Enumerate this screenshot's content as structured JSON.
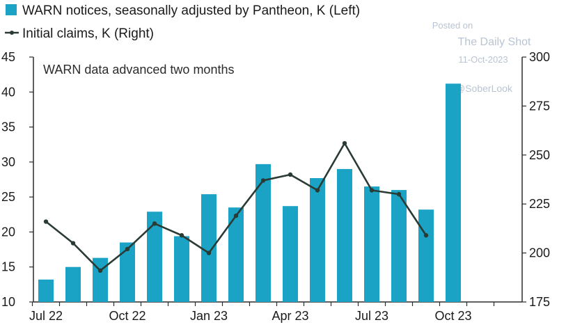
{
  "chart_data": {
    "type": "bar+line",
    "legend": {
      "bars_label": "WARN notices, seasonally adjusted by Pantheon, K (Left)",
      "line_label": "Initial claims, K (Right)"
    },
    "annotation": "WARN data advanced two months",
    "watermark": {
      "posted_on": "Posted on",
      "site": "The Daily Shot",
      "date": "11-Oct-2023",
      "handle": "@SoberLook"
    },
    "x_tick_labels": [
      "Jul 22",
      "Oct 22",
      "Jan 23",
      "Apr 23",
      "Jul 23",
      "Oct 23"
    ],
    "left_axis": {
      "min": 10,
      "max": 45,
      "ticks": [
        "10",
        "15",
        "20",
        "25",
        "30",
        "35",
        "40",
        "45"
      ]
    },
    "right_axis": {
      "min": 175,
      "max": 300,
      "ticks": [
        "175",
        "200",
        "225",
        "250",
        "275",
        "300"
      ]
    },
    "bars_series": {
      "months": [
        "2022-07",
        "2022-08",
        "2022-09",
        "2022-10",
        "2022-11",
        "2022-12",
        "2023-01",
        "2023-02",
        "2023-03",
        "2023-04",
        "2023-05",
        "2023-06",
        "2023-07",
        "2023-08",
        "2023-09",
        "2023-10"
      ],
      "values": [
        13.2,
        15.0,
        16.3,
        18.5,
        22.9,
        19.4,
        25.4,
        23.5,
        29.7,
        23.7,
        27.7,
        29.0,
        26.5,
        26.0,
        23.2,
        41.2
      ],
      "color": "#1ba3c6"
    },
    "line_series": {
      "months": [
        "2022-07",
        "2022-08",
        "2022-09",
        "2022-10",
        "2022-11",
        "2022-12",
        "2023-01",
        "2023-02",
        "2023-03",
        "2023-04",
        "2023-05",
        "2023-06",
        "2023-07",
        "2023-08",
        "2023-09"
      ],
      "values": [
        216,
        205,
        191,
        202,
        215,
        209,
        200,
        219,
        237,
        240,
        232,
        256,
        232,
        230,
        209
      ],
      "color": "#2a3b34"
    },
    "grid": false
  }
}
